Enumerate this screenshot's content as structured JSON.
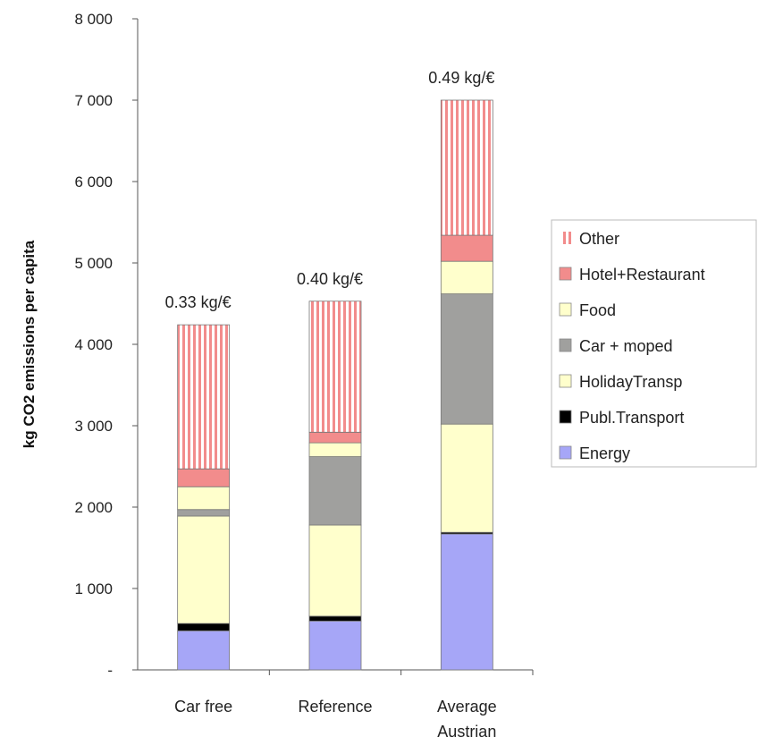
{
  "chart_data": {
    "type": "bar",
    "stacked": true,
    "categories": [
      "Car free",
      "Reference",
      "Average Austrian"
    ],
    "category_lines": [
      [
        "Car free"
      ],
      [
        "Reference"
      ],
      [
        "Average",
        "Austrian"
      ]
    ],
    "ylabel": "kg CO2 emissions per capita",
    "ylim": [
      0,
      8000
    ],
    "yticks": [
      0,
      1000,
      2000,
      3000,
      4000,
      5000,
      6000,
      7000,
      8000
    ],
    "ytick_labels": [
      "-",
      "1 000",
      "2 000",
      "3 000",
      "4 000",
      "5 000",
      "6 000",
      "7 000",
      "8 000"
    ],
    "grid": false,
    "legend_position": "right",
    "annotations": [
      "0.33 kg/€",
      "0.40 kg/€",
      "0.49 kg/€"
    ],
    "series": [
      {
        "name": "Energy",
        "color": "#a6a6f7",
        "pattern": "solid",
        "values": [
          480,
          600,
          1670
        ]
      },
      {
        "name": "Publ.Transport",
        "color": "#000000",
        "pattern": "solid",
        "values": [
          90,
          60,
          20
        ]
      },
      {
        "name": "HolidayTransp",
        "color": "#ffffcc",
        "pattern": "solid",
        "values": [
          1320,
          1120,
          1330
        ]
      },
      {
        "name": "Car + moped",
        "color": "#a0a09e",
        "pattern": "solid",
        "values": [
          80,
          840,
          1600
        ]
      },
      {
        "name": "Food",
        "color": "#ffffcc",
        "pattern": "solid",
        "values": [
          280,
          170,
          400
        ]
      },
      {
        "name": "Hotel+Restaurant",
        "color": "#f28c8c",
        "pattern": "solid",
        "values": [
          220,
          130,
          320
        ]
      },
      {
        "name": "Other",
        "color": "#f28c8c",
        "pattern": "vertical-stripes",
        "values": [
          1770,
          1610,
          1660
        ]
      }
    ],
    "legend_order": [
      "Other",
      "Hotel+Restaurant",
      "Food",
      "Car + moped",
      "HolidayTransp",
      "Publ.Transport",
      "Energy"
    ]
  }
}
